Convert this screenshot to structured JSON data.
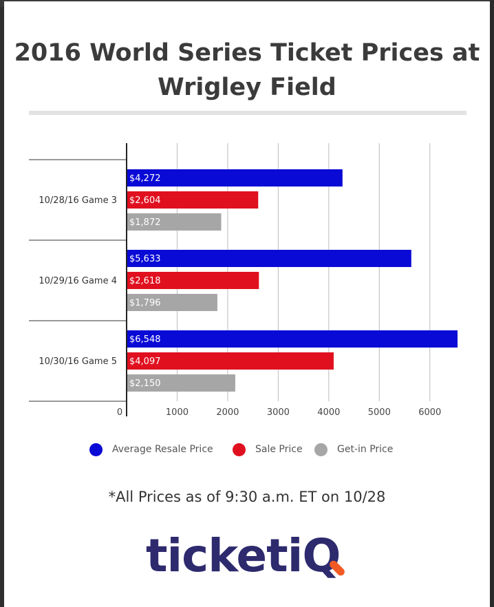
{
  "title": "2016 World Series Ticket Prices at Wrigley Field",
  "footnote": "*All Prices as of 9:30 a.m. ET on 10/28",
  "logo": {
    "main": "ticketi",
    "accent": "Q"
  },
  "colors": {
    "resale": "#0a0ad6",
    "sale": "#e0101f",
    "getin": "#a6a6a6",
    "grid": "#bbbbbb",
    "logo_main": "#2e2a6e",
    "logo_accent": "#f15a24"
  },
  "legend": [
    {
      "label": "Average Resale Price",
      "color": "#0a0ad6"
    },
    {
      "label": "Sale Price",
      "color": "#e0101f"
    },
    {
      "label": "Get-in Price",
      "color": "#a6a6a6"
    }
  ],
  "chart_data": {
    "type": "bar",
    "orientation": "horizontal",
    "categories": [
      "10/28/16 Game 3",
      "10/29/16 Game 4",
      "10/30/16 Game 5"
    ],
    "series": [
      {
        "name": "Average Resale Price",
        "values": [
          4272,
          5633,
          6548
        ],
        "labels": [
          "$4,272",
          "$5,633",
          "$6,548"
        ],
        "color": "#0a0ad6"
      },
      {
        "name": "Sale Price",
        "values": [
          2604,
          2618,
          4097
        ],
        "labels": [
          "$2,604",
          "$2,618",
          "$4,097"
        ],
        "color": "#e0101f"
      },
      {
        "name": "Get-in Price",
        "values": [
          1872,
          1796,
          2150
        ],
        "labels": [
          "$1,872",
          "$1,796",
          "$2,150"
        ],
        "color": "#a6a6a6"
      }
    ],
    "x_ticks": [
      0,
      1000,
      2000,
      3000,
      4000,
      5000,
      6000
    ],
    "xlim": [
      0,
      6548
    ],
    "grid": true,
    "legend_position": "bottom"
  }
}
